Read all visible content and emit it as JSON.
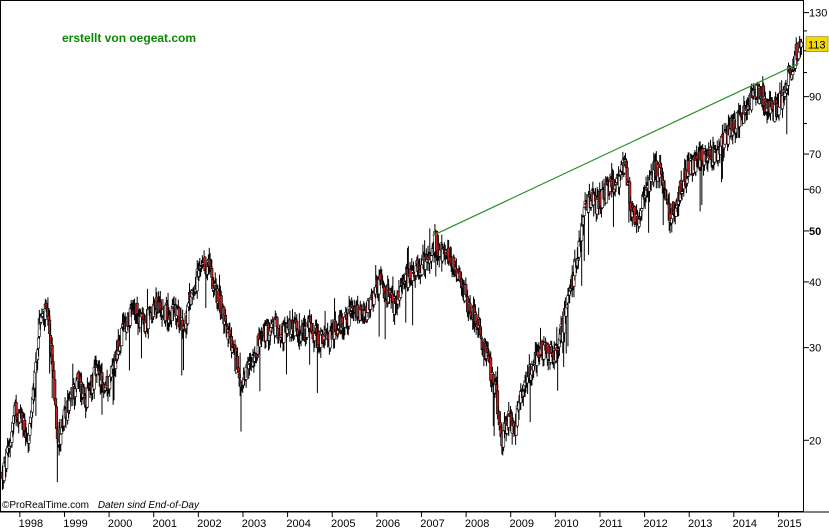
{
  "credit": "erstellt von oegeat.com",
  "footer": {
    "brand": "©ProRealTime.com",
    "note": "Daten sind End-of-Day"
  },
  "colors": {
    "up": "#ffffff",
    "down": "#c81e1e",
    "wick": "#000000",
    "trendline": "#2a8f2a",
    "credit": "#0a8a00",
    "last_badge": "#f5d800"
  },
  "chart_data": {
    "type": "candlestick",
    "title": "",
    "xlabel": "",
    "ylabel": "",
    "scale": "log",
    "ylim": [
      15,
      135
    ],
    "xlim": [
      1997.6,
      2015.55
    ],
    "y_ticks": [
      130,
      90,
      70,
      60,
      50,
      40,
      30,
      20
    ],
    "y_tick_bold": [
      50
    ],
    "x_ticks": [
      "1998",
      "1999",
      "2000",
      "2001",
      "2002",
      "2003",
      "2004",
      "2005",
      "2006",
      "2007",
      "2008",
      "2009",
      "2010",
      "2011",
      "2012",
      "2013",
      "2014",
      "2015"
    ],
    "last_value_label": "113",
    "last_value": 113,
    "trendline": {
      "from": {
        "x": 2007.25,
        "y": 49
      },
      "to": {
        "x": 2015.45,
        "y": 104
      }
    },
    "anchors": [
      [
        1997.6,
        17
      ],
      [
        1997.75,
        19
      ],
      [
        1997.9,
        23
      ],
      [
        1998.05,
        22
      ],
      [
        1998.2,
        20
      ],
      [
        1998.3,
        24
      ],
      [
        1998.45,
        34
      ],
      [
        1998.6,
        35
      ],
      [
        1998.75,
        27
      ],
      [
        1998.85,
        20
      ],
      [
        1999.0,
        22
      ],
      [
        1999.15,
        24
      ],
      [
        1999.3,
        26
      ],
      [
        1999.5,
        24
      ],
      [
        1999.7,
        27
      ],
      [
        1999.9,
        25
      ],
      [
        2000.0,
        26
      ],
      [
        2000.2,
        30
      ],
      [
        2000.4,
        34
      ],
      [
        2000.6,
        35
      ],
      [
        2000.8,
        33
      ],
      [
        2001.0,
        36
      ],
      [
        2001.3,
        35
      ],
      [
        2001.5,
        35
      ],
      [
        2001.7,
        33
      ],
      [
        2001.85,
        38
      ],
      [
        2002.05,
        42
      ],
      [
        2002.25,
        43
      ],
      [
        2002.4,
        38
      ],
      [
        2002.55,
        35
      ],
      [
        2002.7,
        31
      ],
      [
        2002.85,
        28
      ],
      [
        2003.0,
        25
      ],
      [
        2003.15,
        28
      ],
      [
        2003.3,
        30
      ],
      [
        2003.5,
        32
      ],
      [
        2003.7,
        33
      ],
      [
        2003.9,
        32
      ],
      [
        2004.1,
        33
      ],
      [
        2004.3,
        32
      ],
      [
        2004.5,
        33
      ],
      [
        2004.7,
        31
      ],
      [
        2004.9,
        31
      ],
      [
        2005.1,
        33
      ],
      [
        2005.3,
        34
      ],
      [
        2005.5,
        35
      ],
      [
        2005.7,
        34
      ],
      [
        2005.85,
        36
      ],
      [
        2006.05,
        40
      ],
      [
        2006.2,
        38
      ],
      [
        2006.4,
        36
      ],
      [
        2006.6,
        40
      ],
      [
        2006.8,
        42
      ],
      [
        2007.0,
        43
      ],
      [
        2007.2,
        44
      ],
      [
        2007.3,
        48
      ],
      [
        2007.5,
        45
      ],
      [
        2007.7,
        44
      ],
      [
        2007.9,
        40
      ],
      [
        2008.05,
        36
      ],
      [
        2008.2,
        35
      ],
      [
        2008.35,
        31
      ],
      [
        2008.5,
        28
      ],
      [
        2008.65,
        25
      ],
      [
        2008.8,
        20
      ],
      [
        2008.95,
        22
      ],
      [
        2009.1,
        21
      ],
      [
        2009.25,
        25
      ],
      [
        2009.4,
        27
      ],
      [
        2009.6,
        29
      ],
      [
        2009.8,
        30
      ],
      [
        2009.95,
        29
      ],
      [
        2010.1,
        31
      ],
      [
        2010.3,
        37
      ],
      [
        2010.5,
        45
      ],
      [
        2010.65,
        54
      ],
      [
        2010.8,
        58
      ],
      [
        2010.95,
        56
      ],
      [
        2011.15,
        60
      ],
      [
        2011.35,
        62
      ],
      [
        2011.55,
        68
      ],
      [
        2011.7,
        55
      ],
      [
        2011.85,
        52
      ],
      [
        2012.0,
        58
      ],
      [
        2012.15,
        65
      ],
      [
        2012.35,
        65
      ],
      [
        2012.5,
        55
      ],
      [
        2012.65,
        54
      ],
      [
        2012.8,
        60
      ],
      [
        2013.0,
        66
      ],
      [
        2013.2,
        68
      ],
      [
        2013.4,
        70
      ],
      [
        2013.6,
        70
      ],
      [
        2013.8,
        75
      ],
      [
        2014.0,
        80
      ],
      [
        2014.15,
        83
      ],
      [
        2014.3,
        85
      ],
      [
        2014.45,
        90
      ],
      [
        2014.6,
        92
      ],
      [
        2014.75,
        86
      ],
      [
        2014.9,
        84
      ],
      [
        2015.05,
        88
      ],
      [
        2015.2,
        97
      ],
      [
        2015.35,
        106
      ],
      [
        2015.5,
        113
      ]
    ]
  }
}
